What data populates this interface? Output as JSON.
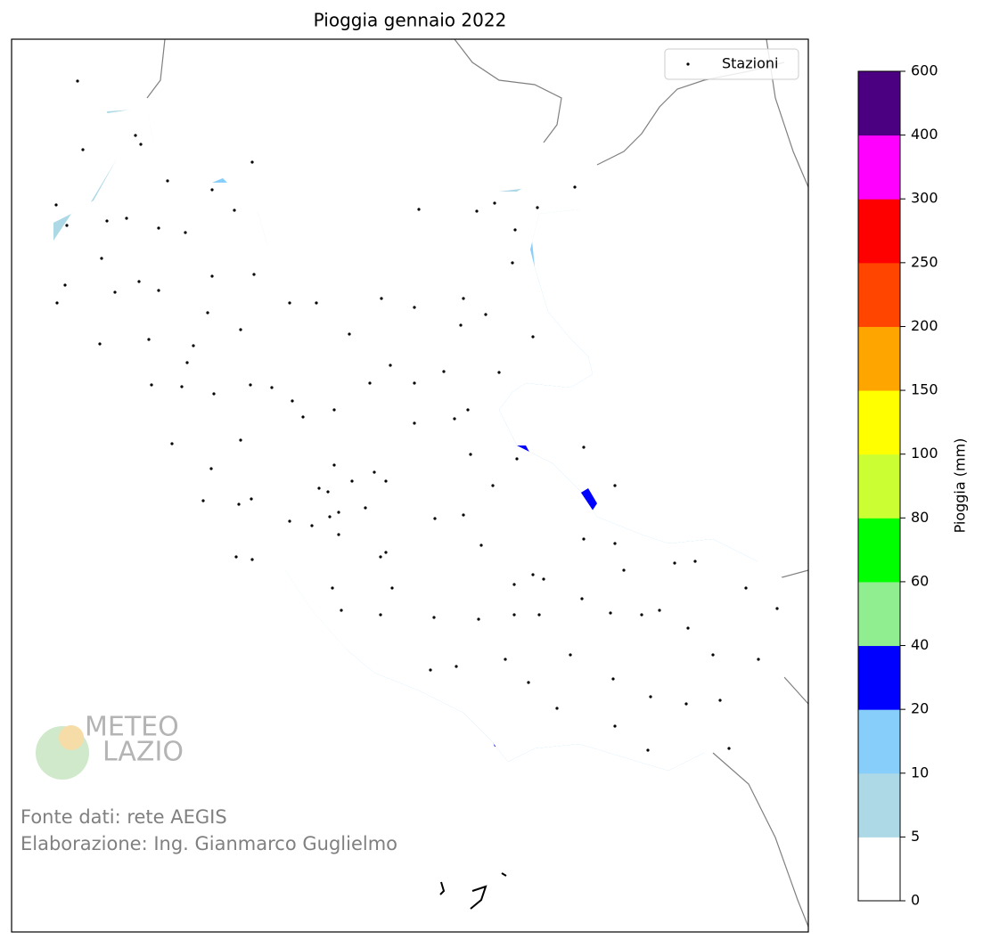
{
  "title": "Pioggia gennaio 2022",
  "legend": {
    "label": "Stazioni"
  },
  "colorbar": {
    "label": "Pioggia (mm)",
    "ticks": [
      0,
      5,
      10,
      20,
      40,
      60,
      80,
      100,
      150,
      200,
      250,
      300,
      400,
      600
    ],
    "colors": [
      "#ffffff",
      "#add8e6",
      "#87cefa",
      "#0000ff",
      "#90ee90",
      "#00ff00",
      "#ccff33",
      "#ffff00",
      "#ffa500",
      "#ff4500",
      "#ff0000",
      "#ff00ff",
      "#4b0082"
    ]
  },
  "credits": {
    "source": "Fonte dati: rete AEGIS",
    "author": "Elaborazione: Ing. Gianmarco Guglielmo"
  },
  "logo": {
    "line1": "METEO",
    "line2": "LAZIO"
  }
}
